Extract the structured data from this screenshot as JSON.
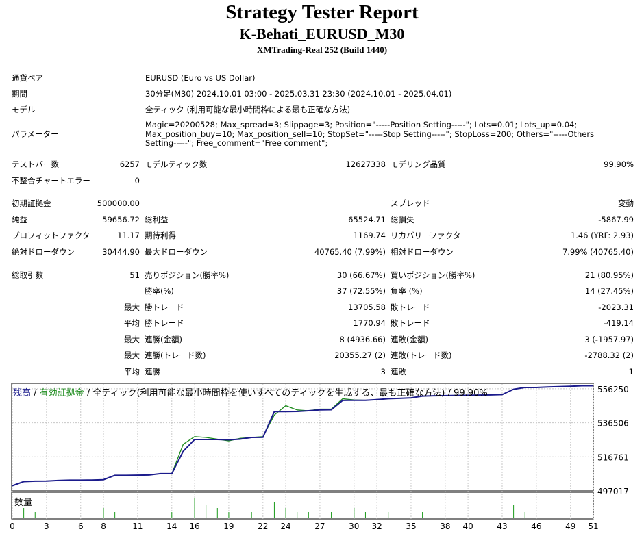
{
  "header": {
    "title": "Strategy Tester Report",
    "subtitle": "K-Behati_EURUSD_M30",
    "server": "XMTrading-Real 252 (Build 1440)"
  },
  "info": {
    "pair_label": "通貨ペア",
    "pair_value": "EURUSD (Euro vs US Dollar)",
    "period_label": "期間",
    "period_value": "30分足(M30) 2024.10.01 03:00 - 2025.03.31 23:30 (2024.10.01 - 2025.04.01)",
    "model_label": "モデル",
    "model_value": "全ティック (利用可能な最小時間枠による最も正確な方法)",
    "param_label": "パラメーター",
    "param_value": "Magic=20200528; Max_spread=3; Slippage=3; Position=\"-----Position Setting-----\"; Lots=0.01; Lots_up=0.04; Max_position_buy=10; Max_position_sell=10; StopSet=\"-----Stop Setting-----\"; StopLoss=200; Others=\"-----Others Setting-----\"; Free_comment=\"Free comment\";"
  },
  "stats": {
    "bars_label": "テストバー数",
    "bars_value": "6257",
    "ticks_label": "モデルティック数",
    "ticks_value": "12627338",
    "quality_label": "モデリング品質",
    "quality_value": "99.90%",
    "mismatch_label": "不整合チャートエラー",
    "mismatch_value": "0",
    "deposit_label": "初期証拠金",
    "deposit_value": "500000.00",
    "spread_label": "スプレッド",
    "spread_value": "変動",
    "net_label": "純益",
    "net_value": "59656.72",
    "gross_profit_label": "総利益",
    "gross_profit_value": "65524.71",
    "gross_loss_label": "総損失",
    "gross_loss_value": "-5867.99",
    "pf_label": "プロフィットファクタ",
    "pf_value": "11.17",
    "payoff_label": "期待利得",
    "payoff_value": "1169.74",
    "recovery_label": "リカバリーファクタ",
    "recovery_value": "1.46 (YRF: 2.93)",
    "abs_dd_label": "絶対ドローダウン",
    "abs_dd_value": "30444.90",
    "max_dd_label": "最大ドローダウン",
    "max_dd_value": "40765.40 (7.99%)",
    "rel_dd_label": "相対ドローダウン",
    "rel_dd_value": "7.99% (40765.40)",
    "trades_label": "総取引数",
    "trades_value": "51",
    "short_label": "売りポジション(勝率%)",
    "short_value": "30 (66.67%)",
    "long_label": "買いポジション(勝率%)",
    "long_value": "21 (80.95%)",
    "win_pct_label": "勝率(%)",
    "win_pct_value": "37 (72.55%)",
    "loss_pct_label": "負率 (%)",
    "loss_pct_value": "14 (27.45%)",
    "max_prefix": "最大",
    "avg_prefix": "平均",
    "largest_win_label": "勝トレード",
    "largest_win_value": "13705.58",
    "largest_loss_label": "敗トレード",
    "largest_loss_value": "-2023.31",
    "avg_win_label": "勝トレード",
    "avg_win_value": "1770.94",
    "avg_loss_label": "敗トレード",
    "avg_loss_value": "-419.14",
    "max_cons_wins_label": "連勝(金額)",
    "max_cons_wins_value": "8 (4936.66)",
    "max_cons_losses_label": "連敗(金額)",
    "max_cons_losses_value": "3 (-1957.97)",
    "max_cons_profit_label": "連勝(トレード数)",
    "max_cons_profit_value": "20355.27 (2)",
    "max_cons_loss_label": "連敗(トレード数)",
    "max_cons_loss_value": "-2788.32 (2)",
    "avg_cons_wins_label": "連勝",
    "avg_cons_wins_value": "3",
    "avg_cons_losses_label": "連敗",
    "avg_cons_losses_value": "1"
  },
  "chart_legend": {
    "balance": "残高",
    "sep1": " / ",
    "equity": "有効証拠金",
    "rest": " / 全ティック(利用可能な最小時間枠を使いすべてのティックを生成する、最も正確な方法) / 99.90%"
  },
  "volume_label": "数量",
  "colors": {
    "balance": "#1b1b8c",
    "equity": "#1a8a1a",
    "grid": "#c8c8c8",
    "volume": "#1a9a1a"
  },
  "chart_data": {
    "type": "line",
    "x": [
      0,
      1,
      2,
      3,
      4,
      5,
      6,
      7,
      8,
      9,
      10,
      11,
      12,
      13,
      14,
      15,
      16,
      17,
      18,
      19,
      20,
      21,
      22,
      23,
      24,
      25,
      26,
      27,
      28,
      29,
      30,
      31,
      32,
      33,
      34,
      35,
      36,
      37,
      38,
      39,
      40,
      41,
      42,
      43,
      44,
      45,
      46,
      47,
      48,
      49,
      50,
      51
    ],
    "xticks": [
      0,
      3,
      6,
      8,
      11,
      14,
      16,
      19,
      22,
      24,
      27,
      30,
      32,
      35,
      38,
      40,
      43,
      46,
      49,
      51
    ],
    "yticks": [
      497017,
      516761,
      536506,
      556250
    ],
    "ylim": [
      497017,
      559000
    ],
    "series": [
      {
        "name": "残高",
        "values": [
          500000,
          502400,
          502600,
          502700,
          503000,
          503200,
          503200,
          503300,
          503500,
          506000,
          506000,
          506100,
          506200,
          507000,
          507000,
          520000,
          526800,
          526800,
          526800,
          526600,
          527000,
          528000,
          528100,
          543000,
          543000,
          543100,
          543500,
          544000,
          544100,
          549500,
          549600,
          549600,
          550000,
          550500,
          550700,
          551000,
          552000,
          552200,
          552300,
          552400,
          552500,
          552600,
          552700,
          552900,
          556000,
          557000,
          557000,
          557300,
          557500,
          557700,
          558000,
          558000
        ]
      },
      {
        "name": "有効証拠金",
        "values": [
          500000,
          502400,
          502600,
          502700,
          503000,
          503200,
          503200,
          503300,
          503500,
          506000,
          506000,
          506100,
          506200,
          507000,
          507000,
          524000,
          528500,
          528000,
          527000,
          526000,
          527500,
          528000,
          528500,
          541000,
          546500,
          544000,
          543500,
          544500,
          544500,
          550500,
          549800,
          549600,
          550000,
          550500,
          550700,
          551000,
          552000,
          552200,
          552300,
          552400,
          552500,
          552600,
          552700,
          552900,
          556000,
          557000,
          557000,
          557300,
          557500,
          557700,
          558000,
          558000
        ]
      },
      {
        "name": "数量",
        "values": [
          0,
          1,
          0.6,
          0,
          0,
          0,
          0,
          0,
          1,
          0.6,
          0,
          0,
          0,
          0,
          0.6,
          0,
          2,
          1.3,
          1,
          0.6,
          0,
          0.6,
          0,
          1.6,
          1,
          0.6,
          0.6,
          0,
          0.6,
          0,
          1,
          0.6,
          0,
          0.6,
          0,
          0,
          0.6,
          0,
          0,
          0,
          0,
          0,
          0,
          0,
          1.3,
          0.6,
          0,
          0,
          0,
          0,
          0,
          0
        ]
      }
    ]
  }
}
